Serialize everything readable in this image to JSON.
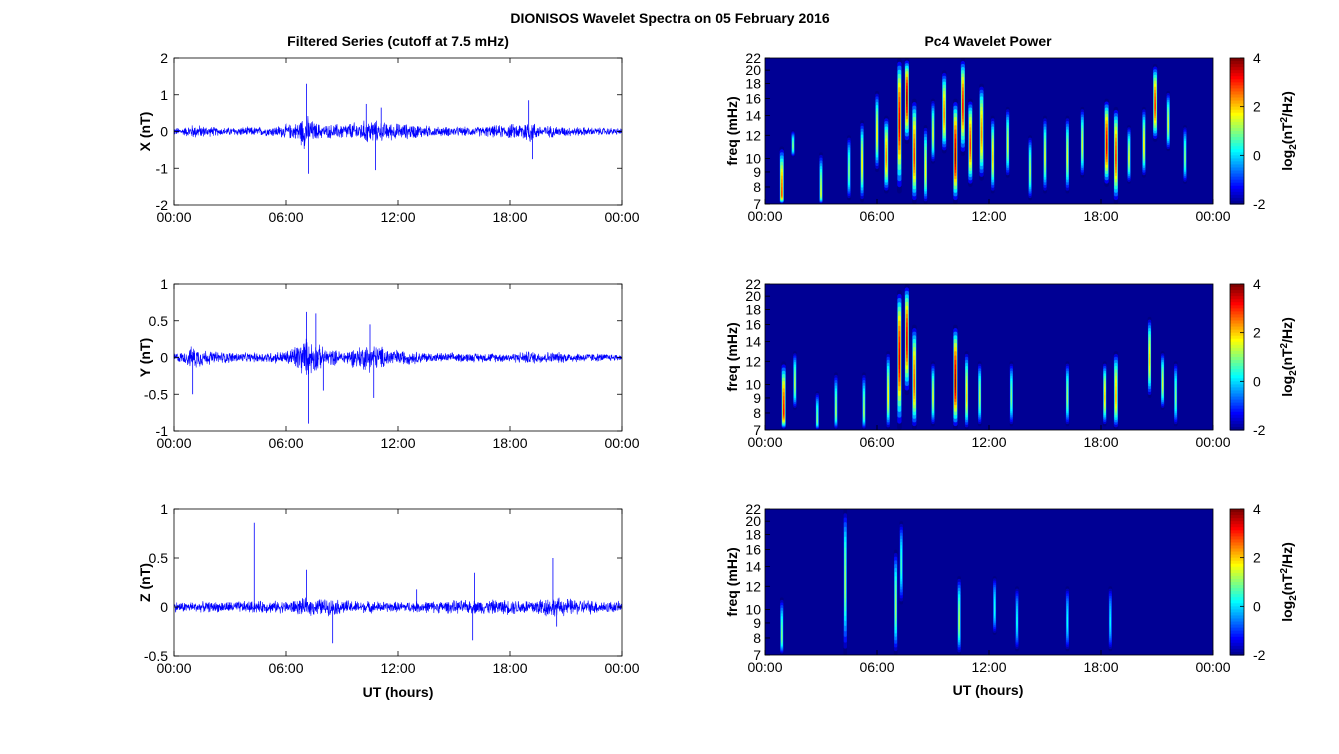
{
  "title": "DIONISOS Wavelet Spectra on 05 February 2016",
  "left_title": "Filtered Series (cutoff at 7.5 mHz)",
  "right_title": "Pc4 Wavelet Power",
  "xlabel": "UT (hours)",
  "time_ticks": [
    "00:00",
    "06:00",
    "12:00",
    "18:00",
    "00:00"
  ],
  "freq_ylabel": "freq (mHz)",
  "freq_ticks": [
    7,
    8,
    9,
    10,
    12,
    14,
    16,
    18,
    20,
    22
  ],
  "colorbar": {
    "label_base": "log",
    "label_sub": "2",
    "label_rest": "(nT",
    "label_sup": "2",
    "label_end": "/Hz)",
    "ticks": [
      4,
      2,
      0,
      -2
    ],
    "range": [
      -2,
      4
    ]
  },
  "colors": {
    "series": "#0000ff",
    "background_jet_low": "#00008f"
  },
  "chart_data": [
    {
      "type": "line",
      "title": "",
      "ylabel": "X (nT)",
      "ylim": [
        -2,
        2
      ],
      "yticks": [
        2,
        1,
        0,
        -1,
        -2
      ],
      "xlim_hours": [
        0,
        24
      ],
      "activity": [
        [
          0.5,
          0.12
        ],
        [
          1.0,
          0.22
        ],
        [
          2.5,
          0.12
        ],
        [
          3.5,
          0.14
        ],
        [
          5.0,
          0.14
        ],
        [
          6.5,
          0.25
        ],
        [
          7.0,
          0.55
        ],
        [
          7.5,
          0.3
        ],
        [
          8.0,
          0.2
        ],
        [
          9.0,
          0.25
        ],
        [
          10.0,
          0.3
        ],
        [
          10.5,
          0.4
        ],
        [
          11.0,
          0.3
        ],
        [
          12.0,
          0.25
        ],
        [
          13.0,
          0.22
        ],
        [
          14.0,
          0.15
        ],
        [
          16.0,
          0.14
        ],
        [
          17.5,
          0.2
        ],
        [
          18.5,
          0.25
        ],
        [
          19.0,
          0.4
        ],
        [
          19.5,
          0.2
        ],
        [
          21.0,
          0.15
        ],
        [
          24.0,
          0.1
        ]
      ],
      "spikes": [
        [
          7.1,
          1.3
        ],
        [
          7.2,
          -1.15
        ],
        [
          10.3,
          0.75
        ],
        [
          10.8,
          -1.05
        ],
        [
          19.0,
          0.85
        ],
        [
          19.2,
          -0.75
        ],
        [
          11.1,
          0.65
        ]
      ]
    },
    {
      "type": "line",
      "title": "",
      "ylabel": "Y (nT)",
      "ylim": [
        -1,
        1
      ],
      "yticks": [
        1,
        0.5,
        0,
        -0.5,
        -1
      ],
      "xlim_hours": [
        0,
        24
      ],
      "activity": [
        [
          0.5,
          0.08
        ],
        [
          1.0,
          0.18
        ],
        [
          2.0,
          0.1
        ],
        [
          4.0,
          0.07
        ],
        [
          6.0,
          0.1
        ],
        [
          7.0,
          0.3
        ],
        [
          7.5,
          0.25
        ],
        [
          8.0,
          0.15
        ],
        [
          9.0,
          0.1
        ],
        [
          10.5,
          0.22
        ],
        [
          11.0,
          0.18
        ],
        [
          12.0,
          0.12
        ],
        [
          14.0,
          0.07
        ],
        [
          18.0,
          0.07
        ],
        [
          19.0,
          0.1
        ],
        [
          21.0,
          0.08
        ],
        [
          24.0,
          0.05
        ]
      ],
      "spikes": [
        [
          7.1,
          0.62
        ],
        [
          7.2,
          -0.9
        ],
        [
          7.6,
          0.6
        ],
        [
          8.0,
          -0.45
        ],
        [
          10.5,
          0.45
        ],
        [
          10.7,
          -0.55
        ],
        [
          1.0,
          -0.5
        ]
      ]
    },
    {
      "type": "line",
      "title": "",
      "ylabel": "Z (nT)",
      "ylim": [
        -0.5,
        1
      ],
      "yticks": [
        1,
        0.5,
        0,
        -0.5
      ],
      "xlim_hours": [
        0,
        24
      ],
      "activity": [
        [
          0,
          0.06
        ],
        [
          2.0,
          0.06
        ],
        [
          4.0,
          0.07
        ],
        [
          6.0,
          0.07
        ],
        [
          7.0,
          0.1
        ],
        [
          8.0,
          0.1
        ],
        [
          10.0,
          0.07
        ],
        [
          12.0,
          0.06
        ],
        [
          16.0,
          0.08
        ],
        [
          19.0,
          0.09
        ],
        [
          20.0,
          0.12
        ],
        [
          21.0,
          0.1
        ],
        [
          24.0,
          0.06
        ]
      ],
      "spikes": [
        [
          4.3,
          0.86
        ],
        [
          7.1,
          0.38
        ],
        [
          8.5,
          -0.37
        ],
        [
          16.0,
          -0.34
        ],
        [
          16.1,
          0.35
        ],
        [
          20.3,
          0.5
        ],
        [
          20.5,
          -0.2
        ],
        [
          13.0,
          0.18
        ]
      ]
    },
    {
      "type": "heatmap",
      "title": "",
      "ylabel": "freq (mHz)",
      "xlim_hours": [
        0,
        24
      ],
      "ylim_mhz": [
        7,
        22
      ],
      "clim": [
        -2,
        4
      ],
      "events": [
        [
          0.9,
          7.5,
          3.5,
          2.8
        ],
        [
          1.5,
          11,
          1.5,
          1.0
        ],
        [
          3.0,
          7.5,
          3.0,
          1.5
        ],
        [
          4.5,
          9,
          3,
          1.0
        ],
        [
          5.2,
          9.5,
          4,
          1.8
        ],
        [
          6.0,
          12,
          5,
          1.8
        ],
        [
          6.5,
          10,
          4,
          2.5
        ],
        [
          7.2,
          13,
          9,
          3.5
        ],
        [
          7.6,
          16,
          8,
          3.8
        ],
        [
          8.0,
          10,
          6,
          3.0
        ],
        [
          8.6,
          9,
          4,
          1.8
        ],
        [
          9.0,
          12,
          4,
          1.5
        ],
        [
          9.6,
          14,
          6,
          2.5
        ],
        [
          10.2,
          10,
          6,
          3.8
        ],
        [
          10.6,
          15,
          8,
          3.2
        ],
        [
          11.0,
          11,
          5,
          3.0
        ],
        [
          11.6,
          12,
          6,
          2.5
        ],
        [
          12.2,
          10,
          4,
          2.0
        ],
        [
          13.0,
          11,
          4,
          1.5
        ],
        [
          14.2,
          9,
          3,
          1.2
        ],
        [
          15.0,
          10,
          4,
          1.5
        ],
        [
          16.2,
          10,
          4,
          1.6
        ],
        [
          17.0,
          11,
          4,
          1.5
        ],
        [
          18.3,
          11,
          5,
          3.5
        ],
        [
          18.8,
          10,
          5,
          3.0
        ],
        [
          19.5,
          10,
          3,
          1.5
        ],
        [
          20.3,
          11,
          4,
          1.8
        ],
        [
          20.9,
          15,
          6,
          3.0
        ],
        [
          21.6,
          13,
          4,
          1.5
        ],
        [
          22.5,
          10,
          3,
          1.0
        ]
      ]
    },
    {
      "type": "heatmap",
      "title": "",
      "ylabel": "freq (mHz)",
      "xlim_hours": [
        0,
        24
      ],
      "ylim_mhz": [
        7,
        22
      ],
      "clim": [
        -2,
        4
      ],
      "events": [
        [
          1.0,
          8,
          4,
          3.2
        ],
        [
          1.6,
          10,
          3,
          1.3
        ],
        [
          2.8,
          7.5,
          2,
          1.0
        ],
        [
          3.8,
          8,
          3,
          1.2
        ],
        [
          5.3,
          8,
          3,
          1.2
        ],
        [
          6.6,
          9,
          4,
          1.8
        ],
        [
          7.2,
          12,
          9,
          3.5
        ],
        [
          7.6,
          14,
          8,
          3.5
        ],
        [
          8.0,
          10,
          6,
          2.8
        ],
        [
          9.0,
          9,
          3,
          1.5
        ],
        [
          10.2,
          10,
          6,
          3.8
        ],
        [
          10.8,
          9,
          4,
          2.0
        ],
        [
          11.5,
          9,
          3,
          1.3
        ],
        [
          13.2,
          9,
          3,
          1.0
        ],
        [
          16.2,
          9,
          3,
          1.2
        ],
        [
          18.2,
          9,
          3,
          2.0
        ],
        [
          18.8,
          9,
          4,
          2.2
        ],
        [
          20.6,
          12,
          5,
          2.0
        ],
        [
          21.3,
          10,
          3,
          1.5
        ],
        [
          22.0,
          9,
          3,
          1.0
        ]
      ]
    },
    {
      "type": "heatmap",
      "title": "",
      "ylabel": "freq (mHz)",
      "xlim_hours": [
        0,
        24
      ],
      "ylim_mhz": [
        7,
        22
      ],
      "clim": [
        -2,
        4
      ],
      "events": [
        [
          0.9,
          8,
          3,
          1.0
        ],
        [
          4.3,
          12,
          12,
          1.2
        ],
        [
          7.0,
          10,
          6,
          1.2
        ],
        [
          7.3,
          14,
          6,
          0.6
        ],
        [
          10.4,
          9,
          4,
          1.3
        ],
        [
          12.3,
          10,
          3,
          0.4
        ],
        [
          13.5,
          9,
          3,
          0.3
        ],
        [
          16.2,
          9,
          3,
          0.3
        ],
        [
          18.5,
          9,
          3,
          0.2
        ]
      ]
    }
  ]
}
